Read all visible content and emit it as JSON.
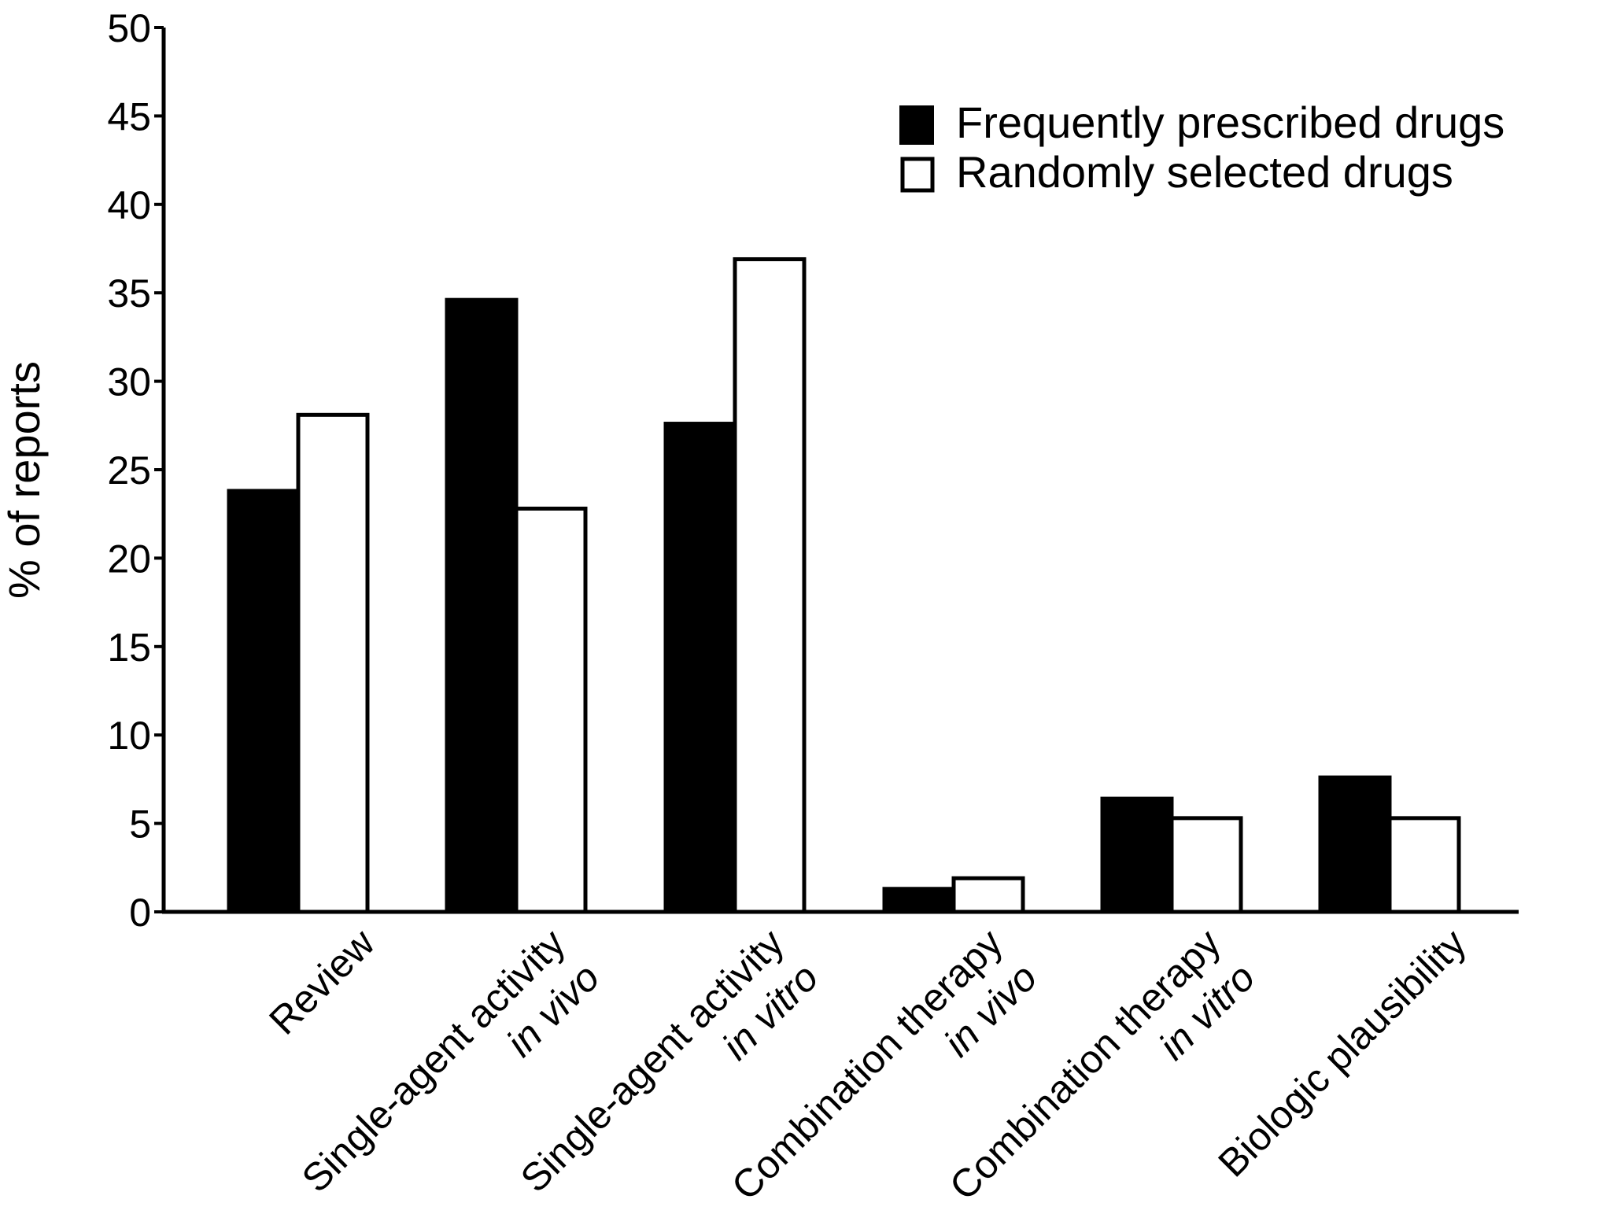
{
  "chart_data": {
    "type": "bar",
    "title": "",
    "xlabel": "",
    "ylabel": "% of reports",
    "ylim": [
      0,
      50
    ],
    "yticks": [
      0,
      5,
      10,
      15,
      20,
      25,
      30,
      35,
      40,
      45,
      50
    ],
    "grid": false,
    "legend_position": "top-right",
    "categories": [
      {
        "line1": "Review",
        "line2": ""
      },
      {
        "line1": "Single-agent activity",
        "line2": "in vivo"
      },
      {
        "line1": "Single-agent activity",
        "line2": "in vitro"
      },
      {
        "line1": "Combination therapy",
        "line2": "in vivo"
      },
      {
        "line1": "Combination therapy",
        "line2": "in vitro"
      },
      {
        "line1": "Biologic plausibility",
        "line2": ""
      }
    ],
    "series": [
      {
        "name": "Frequently prescribed drugs",
        "fill": "#000000",
        "values": [
          23.8,
          34.6,
          27.6,
          1.3,
          6.4,
          7.6
        ]
      },
      {
        "name": "Randomly selected drugs",
        "fill": "#ffffff",
        "values": [
          28.1,
          22.8,
          36.9,
          1.9,
          5.3,
          5.3
        ]
      }
    ],
    "colors": {
      "axis": "#000000",
      "bar_stroke": "#000000",
      "background": "#ffffff"
    }
  }
}
